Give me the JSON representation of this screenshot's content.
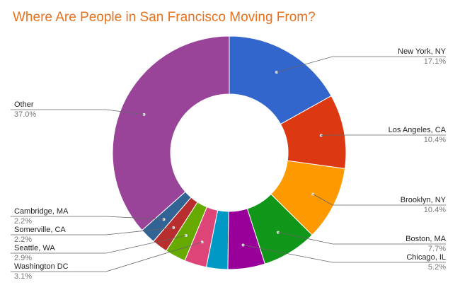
{
  "chart_data": {
    "type": "pie",
    "style": "donut",
    "title": "Where Are People in San Francisco Moving From?",
    "legend": "labels beside slices",
    "slices": [
      {
        "label": "New York, NY",
        "value": 17.1,
        "value_label": "17.1%",
        "color": "#3366cc"
      },
      {
        "label": "Los Angeles, CA",
        "value": 10.4,
        "value_label": "10.4%",
        "color": "#dc3912"
      },
      {
        "label": "Brooklyn, NY",
        "value": 10.4,
        "value_label": "10.4%",
        "color": "#ff9900"
      },
      {
        "label": "Boston, MA",
        "value": 7.7,
        "value_label": "7.7%",
        "color": "#109618"
      },
      {
        "label": "Chicago, IL",
        "value": 5.2,
        "value_label": "5.2%",
        "color": "#990099"
      },
      {
        "label": "",
        "value": 3.0,
        "value_label": "",
        "color": "#0099c6"
      },
      {
        "label": "Washington DC",
        "value": 3.1,
        "value_label": "3.1%",
        "color": "#dd4477"
      },
      {
        "label": "Seattle, WA",
        "value": 2.9,
        "value_label": "2.9%",
        "color": "#66aa00"
      },
      {
        "label": "Somerville, CA",
        "value": 2.2,
        "value_label": "2.2%",
        "color": "#b82e2e"
      },
      {
        "label": "Cambridge, MA",
        "value": 2.2,
        "value_label": "2.2%",
        "color": "#316395"
      },
      {
        "label": "Other",
        "value": 37.0,
        "value_label": "37.0%",
        "color": "#994499"
      }
    ]
  }
}
